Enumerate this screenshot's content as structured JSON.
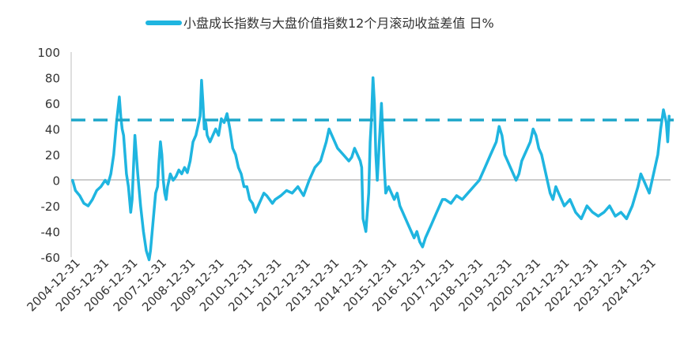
{
  "chart_data": {
    "type": "line",
    "title": "",
    "xlabel": "",
    "ylabel": "",
    "ylim": [
      -60,
      100
    ],
    "yticks": [
      100,
      80,
      60,
      40,
      20,
      0,
      -20,
      -40,
      -60
    ],
    "x_tick_labels": [
      "2004-12-31",
      "2005-12-31",
      "2006-12-31",
      "2007-12-31",
      "2008-12-31",
      "2009-12-31",
      "2010-12-31",
      "2011-12-31",
      "2012-12-31",
      "2013-12-31",
      "2014-12-31",
      "2015-12-31",
      "2016-12-31",
      "2017-12-31",
      "2018-12-31",
      "2019-12-31",
      "2020-12-31",
      "2021-12-31",
      "2022-12-31",
      "2023-12-31",
      "2024-12-31"
    ],
    "x_range": [
      2004.8,
      2025.95
    ],
    "grid": false,
    "legend_position": "top-center",
    "reference_line": {
      "value": 47,
      "style": "dashed",
      "color": "#1FA7C9"
    },
    "series": [
      {
        "name": "小盘成长指数与大盘价值指数12个月滚动收益差值 日%",
        "color": "#1FB5E0",
        "x": [
          2004.85,
          2004.95,
          2005.1,
          2005.25,
          2005.4,
          2005.55,
          2005.7,
          2005.85,
          2006.0,
          2006.1,
          2006.2,
          2006.3,
          2006.4,
          2006.5,
          2006.55,
          2006.6,
          2006.65,
          2006.7,
          2006.75,
          2006.82,
          2006.9,
          2006.95,
          2007.0,
          2007.05,
          2007.1,
          2007.15,
          2007.25,
          2007.35,
          2007.45,
          2007.55,
          2007.6,
          2007.7,
          2007.78,
          2007.85,
          2007.9,
          2007.95,
          2008.0,
          2008.05,
          2008.1,
          2008.15,
          2008.2,
          2008.3,
          2008.4,
          2008.5,
          2008.6,
          2008.7,
          2008.8,
          2008.9,
          2009.0,
          2009.1,
          2009.2,
          2009.3,
          2009.35,
          2009.4,
          2009.45,
          2009.5,
          2009.55,
          2009.6,
          2009.7,
          2009.8,
          2009.9,
          2010.0,
          2010.1,
          2010.2,
          2010.3,
          2010.4,
          2010.5,
          2010.6,
          2010.7,
          2010.8,
          2010.9,
          2011.0,
          2011.1,
          2011.2,
          2011.3,
          2011.4,
          2011.5,
          2011.6,
          2011.7,
          2011.8,
          2011.9,
          2012.0,
          2012.2,
          2012.4,
          2012.6,
          2012.8,
          2013.0,
          2013.2,
          2013.4,
          2013.6,
          2013.8,
          2013.9,
          2014.0,
          2014.2,
          2014.4,
          2014.6,
          2014.7,
          2014.8,
          2014.9,
          2015.0,
          2015.05,
          2015.1,
          2015.2,
          2015.3,
          2015.35,
          2015.4,
          2015.45,
          2015.5,
          2015.55,
          2015.6,
          2015.7,
          2015.75,
          2015.85,
          2015.9,
          2016.0,
          2016.1,
          2016.2,
          2016.3,
          2016.4,
          2016.5,
          2016.6,
          2016.7,
          2016.8,
          2016.9,
          2017.0,
          2017.1,
          2017.2,
          2017.3,
          2017.4,
          2017.5,
          2017.6,
          2017.7,
          2017.8,
          2017.9,
          2018.0,
          2018.2,
          2018.4,
          2018.6,
          2018.8,
          2019.0,
          2019.2,
          2019.4,
          2019.6,
          2019.8,
          2019.9,
          2020.0,
          2020.1,
          2020.2,
          2020.3,
          2020.4,
          2020.5,
          2020.6,
          2020.7,
          2020.8,
          2020.9,
          2021.0,
          2021.1,
          2021.2,
          2021.3,
          2021.4,
          2021.5,
          2021.6,
          2021.7,
          2021.8,
          2021.9,
          2022.0,
          2022.2,
          2022.4,
          2022.6,
          2022.8,
          2023.0,
          2023.2,
          2023.4,
          2023.6,
          2023.8,
          2024.0,
          2024.2,
          2024.4,
          2024.6,
          2024.8,
          2024.9,
          2025.0,
          2025.1,
          2025.2,
          2025.3,
          2025.4,
          2025.5,
          2025.6,
          2025.7,
          2025.8,
          2025.85,
          2025.9
        ],
        "y": [
          0,
          -8,
          -12,
          -18,
          -20,
          -15,
          -8,
          -5,
          0,
          -3,
          5,
          20,
          45,
          65,
          50,
          40,
          35,
          20,
          5,
          -5,
          -25,
          -15,
          10,
          35,
          20,
          5,
          -20,
          -40,
          -55,
          -62,
          -55,
          -30,
          -10,
          -5,
          15,
          30,
          20,
          0,
          -10,
          -15,
          -5,
          5,
          0,
          3,
          8,
          5,
          10,
          6,
          15,
          30,
          35,
          45,
          50,
          78,
          60,
          40,
          45,
          35,
          30,
          35,
          40,
          35,
          48,
          45,
          52,
          40,
          25,
          20,
          10,
          5,
          -5,
          -5,
          -15,
          -18,
          -25,
          -20,
          -15,
          -10,
          -12,
          -15,
          -18,
          -15,
          -12,
          -8,
          -10,
          -5,
          -12,
          0,
          10,
          15,
          30,
          40,
          35,
          25,
          20,
          15,
          18,
          25,
          20,
          15,
          10,
          -30,
          -40,
          -10,
          30,
          50,
          80,
          60,
          20,
          0,
          40,
          60,
          10,
          -10,
          -5,
          -10,
          -15,
          -10,
          -20,
          -25,
          -30,
          -35,
          -40,
          -45,
          -40,
          -48,
          -52,
          -45,
          -40,
          -35,
          -30,
          -25,
          -20,
          -15,
          -15,
          -18,
          -12,
          -15,
          -10,
          -5,
          0,
          10,
          20,
          30,
          42,
          35,
          20,
          15,
          10,
          5,
          0,
          5,
          15,
          20,
          25,
          30,
          40,
          35,
          25,
          20,
          10,
          0,
          -10,
          -15,
          -5,
          -10,
          -20,
          -15,
          -25,
          -30,
          -20,
          -25,
          -28,
          -25,
          -20,
          -28,
          -25,
          -30,
          -20,
          -5,
          5,
          0,
          -5,
          -10,
          0,
          10,
          20,
          40,
          55,
          45,
          30,
          50
        ]
      }
    ]
  }
}
